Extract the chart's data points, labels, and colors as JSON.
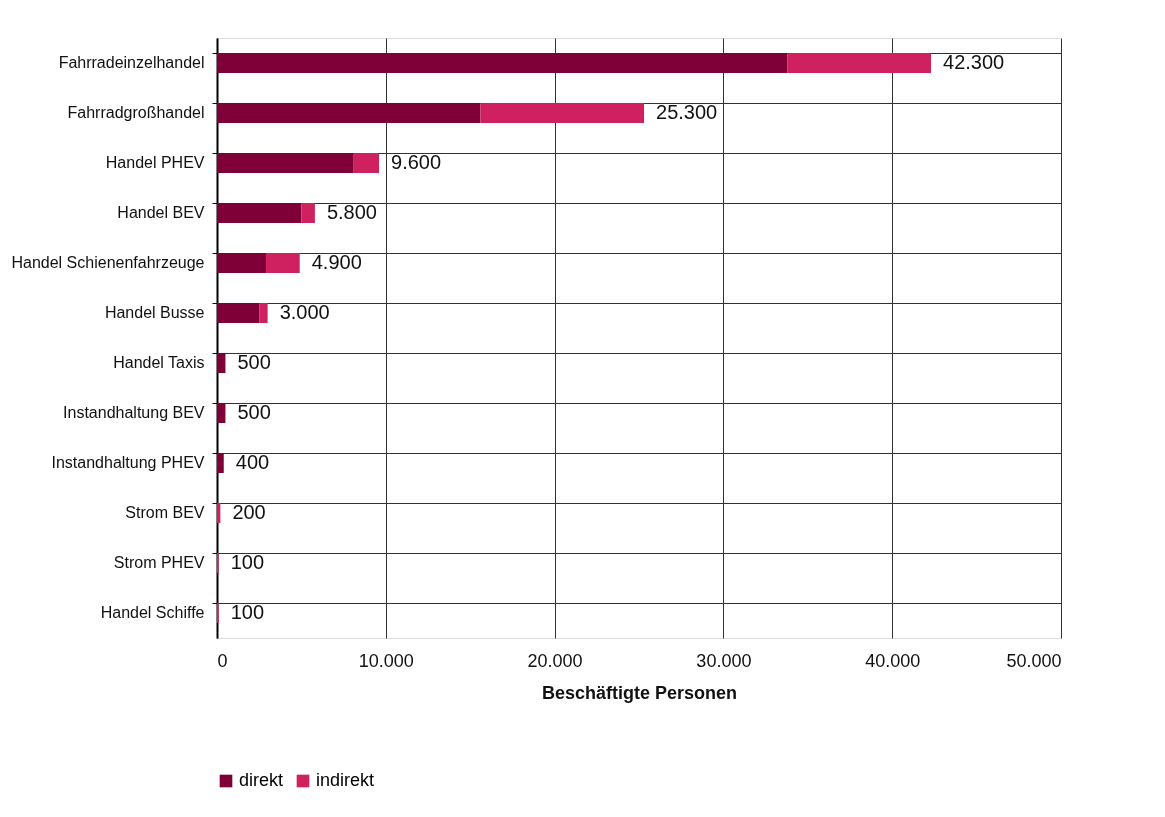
{
  "chart_data": {
    "type": "bar",
    "orientation": "horizontal",
    "stacked": true,
    "xlabel": "Beschäftigte Personen",
    "categories": [
      "Fahrradeinzelhandel",
      "Fahrradgroßhandel",
      "Handel PHEV",
      "Handel BEV",
      "Handel Schienenfahrzeuge",
      "Handel Busse",
      "Handel Taxis",
      "Instandhaltung BEV",
      "Instandhaltung PHEV",
      "Strom BEV",
      "Strom PHEV",
      "Handel Schiffe"
    ],
    "series": [
      {
        "name": "direkt",
        "color": "#7f0037",
        "values": [
          33800,
          15600,
          8100,
          5000,
          2900,
          2500,
          500,
          500,
          400,
          0,
          0,
          0
        ]
      },
      {
        "name": "indirekt",
        "color": "#cf215f",
        "values": [
          8500,
          9700,
          1500,
          800,
          2000,
          500,
          0,
          0,
          0,
          200,
          100,
          100
        ]
      }
    ],
    "totals": [
      "42.300",
      "25.300",
      "9.600",
      "5.800",
      "4.900",
      "3.000",
      "500",
      "500",
      "400",
      "200",
      "100",
      "100"
    ],
    "xlim": [
      0,
      50000
    ],
    "xticks": [
      0,
      {
        "value": 10000,
        "label": "10.000"
      },
      {
        "value": 20000,
        "label": "20.000"
      },
      {
        "value": 30000,
        "label": "30.000"
      },
      {
        "value": 40000,
        "label": "40.000"
      },
      {
        "value": 50000,
        "label": "50.000"
      }
    ],
    "grid": true,
    "legend": "bottom"
  }
}
